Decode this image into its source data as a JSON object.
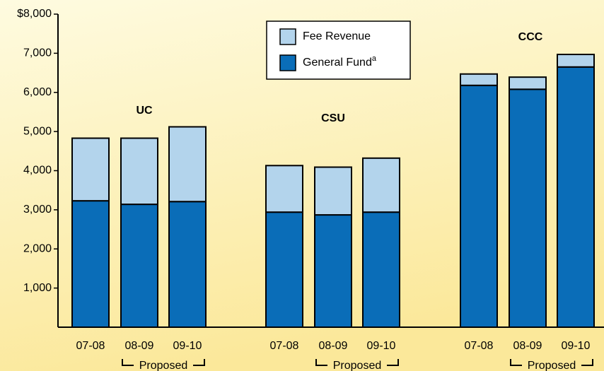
{
  "chart_data": {
    "type": "stacked_bar",
    "categories": [
      "07-08",
      "08-09",
      "09-10",
      "07-08",
      "08-09",
      "09-10",
      "07-08",
      "08-09",
      "09-10"
    ],
    "groups": [
      "UC",
      "CSU",
      "CCC"
    ],
    "group_notes": [
      "Proposed",
      "Proposed",
      "Proposed"
    ],
    "series": [
      {
        "name": "General Fund",
        "footnote": "a",
        "color": "#0a6db8",
        "values": [
          3230,
          3140,
          3210,
          2940,
          2870,
          2940,
          6180,
          6080,
          6650
        ]
      },
      {
        "name": "Fee Revenue",
        "color": "#b3d4ec",
        "values": [
          1600,
          1690,
          1910,
          1190,
          1220,
          1380,
          290,
          310,
          320
        ]
      }
    ],
    "ylim": [
      0,
      8000
    ],
    "yticks": [
      {
        "value": 1000,
        "label": "1,000"
      },
      {
        "value": 2000,
        "label": "2,000"
      },
      {
        "value": 3000,
        "label": "3,000"
      },
      {
        "value": 4000,
        "label": "4,000"
      },
      {
        "value": 5000,
        "label": "5,000"
      },
      {
        "value": 6000,
        "label": "6,000"
      },
      {
        "value": 7000,
        "label": "7,000"
      },
      {
        "value": 8000,
        "label": "$8,000"
      }
    ]
  }
}
